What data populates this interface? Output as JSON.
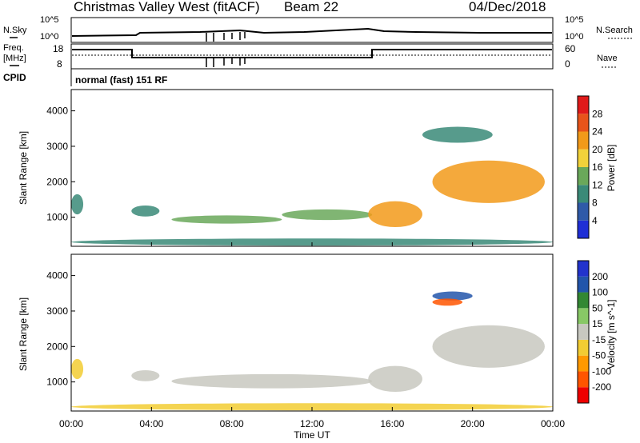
{
  "header": {
    "station": "Christmas Valley West (fitACF)",
    "beam": "Beam 22",
    "date": "04/Dec/2018"
  },
  "summary": {
    "nsky_label": "N.Sky",
    "nsearch_label": "N.Search",
    "noise_ticks": [
      "10^5",
      "10^0"
    ],
    "freq_label": "Freq.",
    "freq_unit": "[MHz]",
    "freq_ticks": [
      "18",
      "8"
    ],
    "nave_label": "Nave",
    "nave_ticks": [
      "60",
      "0"
    ],
    "cpid_label": "CPID",
    "cpid_value": "normal (fast) 151 RF"
  },
  "colors": {
    "power": [
      "#1f2fd6",
      "#2f5aa8",
      "#3a8a78",
      "#6aa85a",
      "#f2d23a",
      "#f29a1a",
      "#e8541a",
      "#e01a1a"
    ],
    "velocity": [
      "#ee0000",
      "#ff5500",
      "#ff9900",
      "#f2cc33",
      "#c8c8c0",
      "#88c866",
      "#338833",
      "#2255aa",
      "#2233cc"
    ],
    "ground": "#9a9a9a"
  },
  "chart_data": [
    {
      "type": "heatmap",
      "name": "power",
      "xlabel": "",
      "ylabel": "Slant Range [km]",
      "x_ticks": [
        "00:00",
        "04:00",
        "08:00",
        "12:00",
        "16:00",
        "20:00",
        "00:00"
      ],
      "y_ticks": [
        "1000",
        "2000",
        "3000",
        "4000"
      ],
      "xlim": [
        0,
        24
      ],
      "ylim": [
        180,
        4600
      ],
      "colorbar": {
        "label": "Power [dB]",
        "ticks": [
          "4",
          "8",
          "12",
          "16",
          "20",
          "24",
          "28"
        ],
        "range": [
          0,
          32
        ]
      },
      "regions": [
        {
          "t0": 0.0,
          "t1": 0.6,
          "r0": 1080,
          "r1": 1650,
          "value": 9
        },
        {
          "t0": 3.0,
          "t1": 4.4,
          "r0": 1020,
          "r1": 1330,
          "value": 10
        },
        {
          "t0": 5.0,
          "t1": 10.5,
          "r0": 820,
          "r1": 1050,
          "value": 13
        },
        {
          "t0": 10.5,
          "t1": 15.0,
          "r0": 920,
          "r1": 1220,
          "value": 12
        },
        {
          "t0": 14.8,
          "t1": 17.5,
          "r0": 720,
          "r1": 1450,
          "value": 21
        },
        {
          "t0": 18.0,
          "t1": 23.6,
          "r0": 1400,
          "r1": 2600,
          "value": 20
        },
        {
          "t0": 17.5,
          "t1": 21.0,
          "r0": 3100,
          "r1": 3550,
          "value": 10
        },
        {
          "t0": 0.0,
          "t1": 24.0,
          "r0": 200,
          "r1": 400,
          "value": 8
        }
      ]
    },
    {
      "type": "heatmap",
      "name": "velocity",
      "xlabel": "Time UT",
      "ylabel": "Slant Range [km]",
      "x_ticks": [
        "00:00",
        "04:00",
        "08:00",
        "12:00",
        "16:00",
        "20:00",
        "00:00"
      ],
      "y_ticks": [
        "1000",
        "2000",
        "3000",
        "4000"
      ],
      "xlim": [
        0,
        24
      ],
      "ylim": [
        180,
        4600
      ],
      "colorbar": {
        "label": "Velocity [m s^-1]",
        "ticks": [
          "200",
          "100",
          "50",
          "15",
          "-15",
          "-50",
          "-100",
          "-200"
        ],
        "range": [
          -250,
          250
        ]
      },
      "regions": [
        {
          "t0": 0.0,
          "t1": 0.6,
          "r0": 1080,
          "r1": 1650,
          "value": -30
        },
        {
          "t0": 3.0,
          "t1": 4.4,
          "r0": 1020,
          "r1": 1330,
          "value": 0
        },
        {
          "t0": 5.0,
          "t1": 15.0,
          "r0": 820,
          "r1": 1220,
          "value": 0
        },
        {
          "t0": 14.8,
          "t1": 17.5,
          "r0": 720,
          "r1": 1450,
          "value": 0
        },
        {
          "t0": 18.0,
          "t1": 23.6,
          "r0": 1400,
          "r1": 2600,
          "value": 0
        },
        {
          "t0": 18.0,
          "t1": 20.0,
          "r0": 3300,
          "r1": 3550,
          "value": 160
        },
        {
          "t0": 18.0,
          "t1": 19.5,
          "r0": 3150,
          "r1": 3350,
          "value": -180
        },
        {
          "t0": 0.0,
          "t1": 24.0,
          "r0": 200,
          "r1": 400,
          "value": -40
        }
      ]
    }
  ]
}
